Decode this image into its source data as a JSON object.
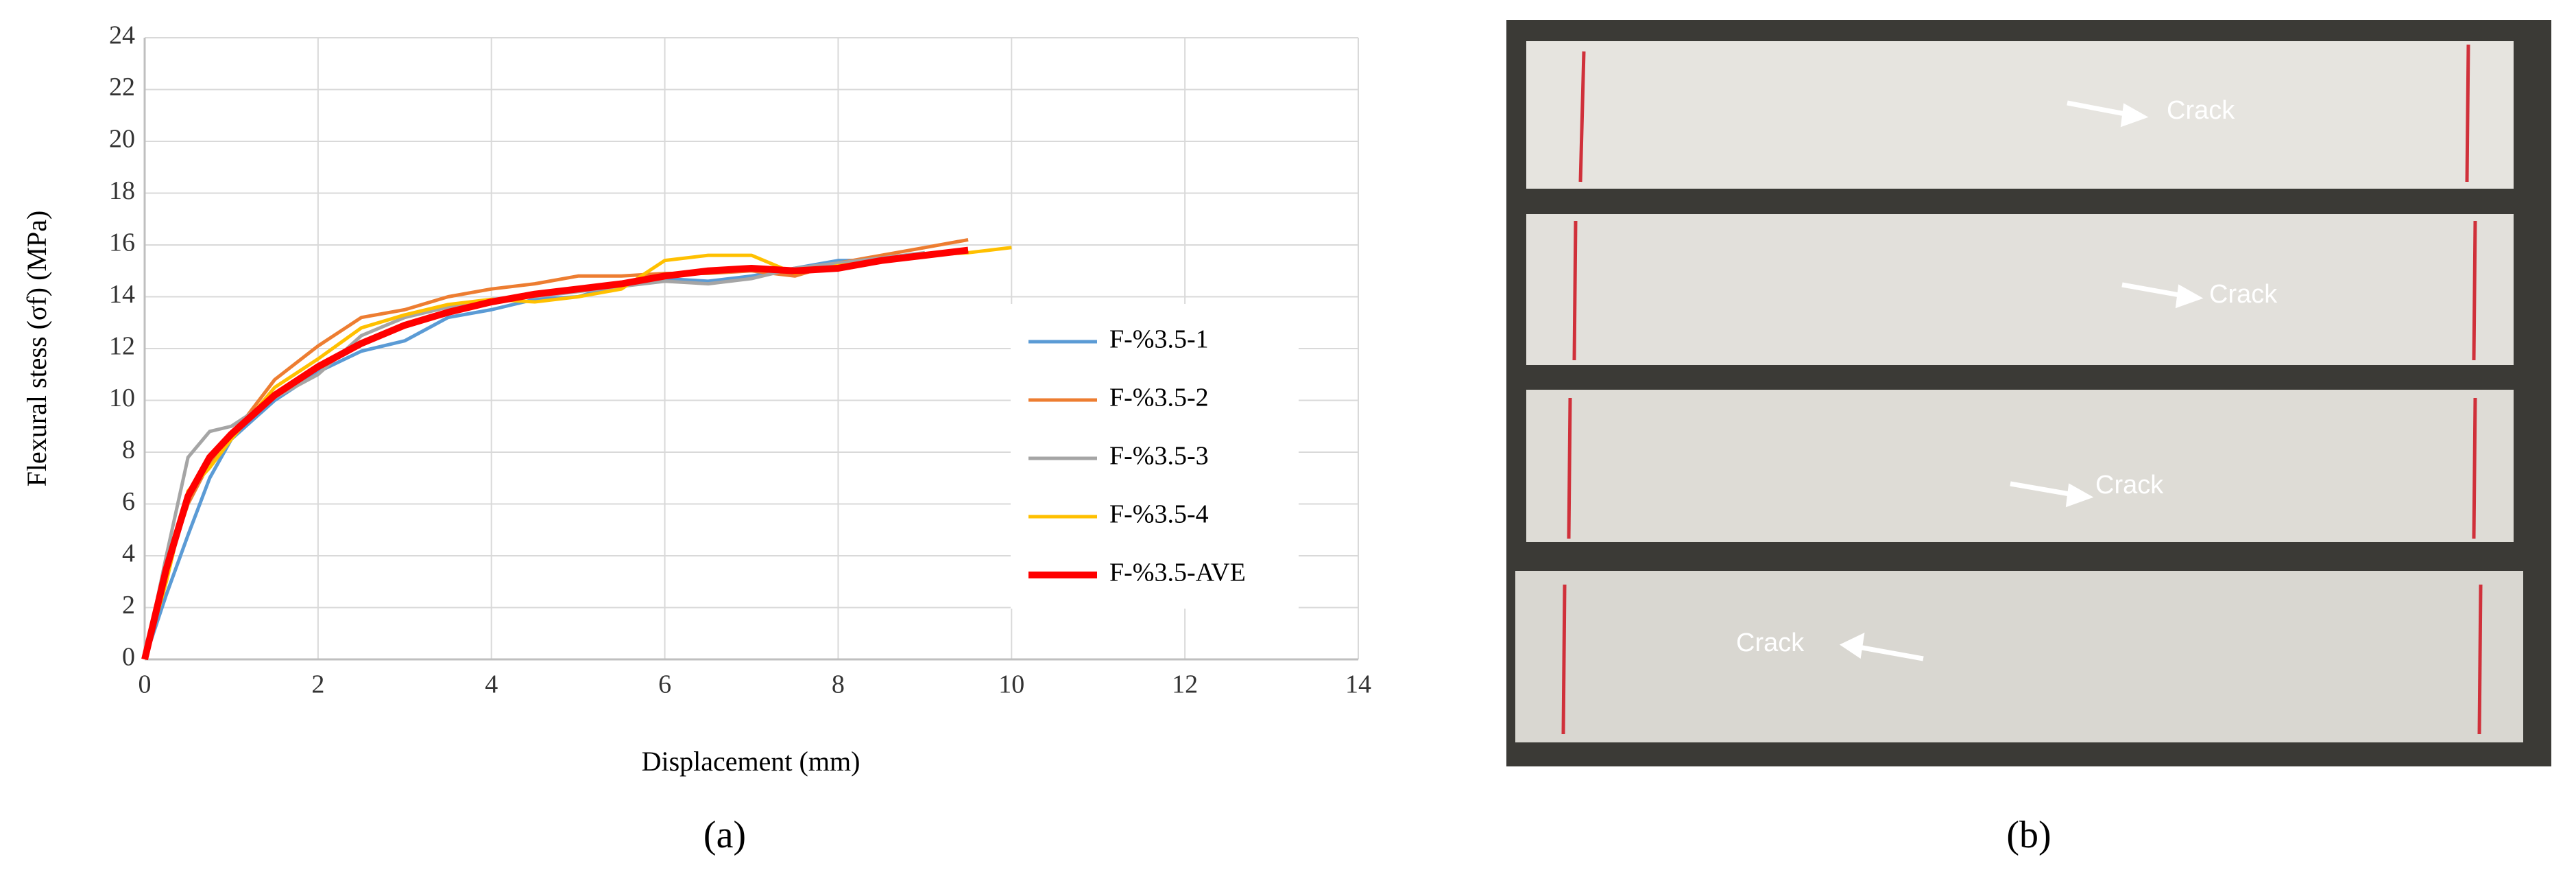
{
  "chart_data": {
    "type": "line",
    "xlabel": "Displacement (mm)",
    "ylabel": "Flexural  stess (σf) (MPa)",
    "x": [
      0,
      0.25,
      0.5,
      0.75,
      1,
      1.5,
      2,
      2.5,
      3,
      3.5,
      4,
      4.5,
      5,
      5.5,
      6,
      6.5,
      7,
      7.5,
      8,
      8.5,
      9,
      9.5,
      10
    ],
    "series": [
      {
        "name": "F-%3.5-1",
        "color": "#5b9bd5",
        "values": [
          0,
          2.5,
          4.8,
          7.0,
          8.5,
          10.0,
          11.1,
          11.9,
          12.3,
          13.2,
          13.5,
          13.9,
          14.0,
          14.5,
          14.7,
          14.6,
          14.8,
          15.1,
          15.4,
          15.4,
          15.6,
          null,
          null
        ]
      },
      {
        "name": "F-%3.5-2",
        "color": "#ed7d31",
        "values": [
          0,
          3.5,
          6.0,
          7.6,
          8.6,
          10.8,
          12.1,
          13.2,
          13.5,
          14.0,
          14.3,
          14.5,
          14.8,
          14.8,
          14.9,
          14.9,
          15.0,
          14.8,
          15.3,
          15.6,
          15.9,
          16.2,
          null
        ]
      },
      {
        "name": "F-%3.5-3",
        "color": "#a5a5a5",
        "values": [
          0,
          4.0,
          7.8,
          8.8,
          9.0,
          10.1,
          11.0,
          12.5,
          13.2,
          13.6,
          13.9,
          14.0,
          14.2,
          14.4,
          14.6,
          14.5,
          14.7,
          15.1,
          15.3,
          15.5,
          15.7,
          null,
          null
        ]
      },
      {
        "name": "F-%3.5-4",
        "color": "#ffc000",
        "values": [
          0,
          3.0,
          6.5,
          7.4,
          8.5,
          10.5,
          11.6,
          12.8,
          13.3,
          13.7,
          13.9,
          13.8,
          14.0,
          14.3,
          15.4,
          15.6,
          15.6,
          14.9,
          15.2,
          15.4,
          15.6,
          15.7,
          15.9
        ]
      },
      {
        "name": "F-%3.5-AVE",
        "color": "#ff0000",
        "values": [
          0,
          3.5,
          6.3,
          7.8,
          8.7,
          10.2,
          11.3,
          12.2,
          12.9,
          13.4,
          13.8,
          14.1,
          14.3,
          14.5,
          14.8,
          15.0,
          15.1,
          15.0,
          15.1,
          15.4,
          15.6,
          15.8,
          null
        ]
      }
    ],
    "xlim": [
      0,
      14
    ],
    "xticks": [
      0,
      2,
      4,
      6,
      8,
      10,
      12,
      14
    ],
    "ylim": [
      0,
      24
    ],
    "yticks": [
      0,
      2,
      4,
      6,
      8,
      10,
      12,
      14,
      16,
      18,
      20,
      22,
      24
    ],
    "grid": true,
    "legend": "right"
  },
  "photo": {
    "labels": [
      "Crack",
      "Crack",
      "Crack",
      "Crack"
    ]
  },
  "captions": [
    "(a)",
    "(b)"
  ]
}
